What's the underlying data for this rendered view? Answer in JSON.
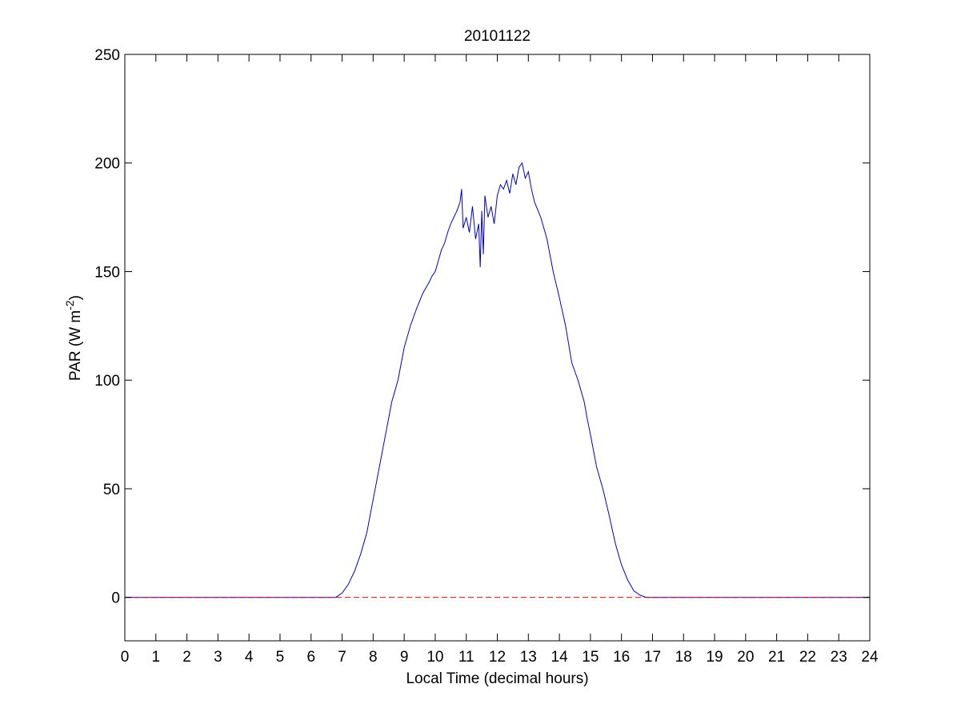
{
  "chart_data": {
    "type": "line",
    "title": "20101122",
    "xlabel": "Local Time (decimal hours)",
    "ylabel": {
      "main": "PAR (W m",
      "superscript": "-2",
      "close": ")"
    },
    "xlim": [
      0,
      24
    ],
    "ylim": [
      -20,
      250
    ],
    "x_ticks": [
      0,
      1,
      2,
      3,
      4,
      5,
      6,
      7,
      8,
      9,
      10,
      11,
      12,
      13,
      14,
      15,
      16,
      17,
      18,
      19,
      20,
      21,
      22,
      23,
      24
    ],
    "x_tick_labels": [
      "0",
      "1",
      "2",
      "3",
      "4",
      "5",
      "6",
      "7",
      "8",
      "9",
      "10",
      "11",
      "12",
      "13",
      "14",
      "15",
      "16",
      "17",
      "18",
      "19",
      "20",
      "21",
      "22",
      "23",
      "24"
    ],
    "y_ticks": [
      0,
      50,
      100,
      150,
      200,
      250
    ],
    "y_tick_labels": [
      "0",
      "50",
      "100",
      "150",
      "200",
      "250"
    ],
    "grid": false,
    "series": [
      {
        "color": "#0000cc",
        "style": "solid",
        "x": [
          0,
          6.8,
          7.0,
          7.2,
          7.4,
          7.6,
          7.8,
          8.0,
          8.2,
          8.4,
          8.6,
          8.8,
          9.0,
          9.2,
          9.4,
          9.6,
          9.8,
          9.9,
          10.0,
          10.1,
          10.2,
          10.3,
          10.4,
          10.5,
          10.6,
          10.7,
          10.8,
          10.85,
          10.9,
          11.0,
          11.1,
          11.2,
          11.3,
          11.4,
          11.45,
          11.5,
          11.55,
          11.6,
          11.7,
          11.8,
          11.9,
          12.0,
          12.1,
          12.2,
          12.3,
          12.4,
          12.5,
          12.6,
          12.7,
          12.8,
          12.9,
          13.0,
          13.1,
          13.2,
          13.4,
          13.6,
          13.8,
          14.0,
          14.2,
          14.4,
          14.6,
          14.8,
          14.9,
          15.0,
          15.2,
          15.4,
          15.6,
          15.8,
          16.0,
          16.2,
          16.4,
          16.6,
          16.8,
          17.0,
          17.2,
          24
        ],
        "y": [
          0,
          0,
          2,
          6,
          12,
          20,
          30,
          45,
          60,
          75,
          90,
          100,
          115,
          125,
          133,
          140,
          145,
          148,
          150,
          155,
          160,
          163,
          168,
          172,
          175,
          178,
          182,
          188,
          170,
          175,
          168,
          180,
          165,
          172,
          152,
          178,
          158,
          185,
          175,
          180,
          172,
          185,
          190,
          188,
          192,
          186,
          195,
          190,
          198,
          200,
          193,
          196,
          188,
          182,
          175,
          165,
          150,
          138,
          125,
          108,
          100,
          90,
          82,
          75,
          60,
          50,
          38,
          25,
          15,
          8,
          3,
          1,
          0,
          0,
          0,
          0
        ]
      },
      {
        "color": "#cc0000",
        "style": "dashed",
        "x": [
          0,
          24
        ],
        "y": [
          0,
          0
        ]
      }
    ]
  }
}
